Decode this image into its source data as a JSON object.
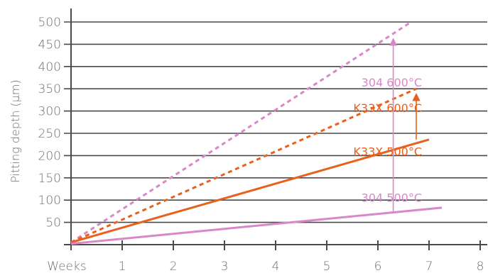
{
  "chart_data": {
    "type": "line",
    "title": "",
    "xlabel": "Weeks",
    "ylabel": "Pitting depth (µm)",
    "xlim": [
      0,
      8
    ],
    "ylim": [
      0,
      500
    ],
    "x_ticks": [
      "1",
      "2",
      "3",
      "4",
      "5",
      "6",
      "7",
      "8"
    ],
    "y_ticks": [
      "50",
      "100",
      "150",
      "200",
      "250",
      "300",
      "350",
      "400",
      "450",
      "500"
    ],
    "grid": {
      "horizontal": true,
      "vertical": false
    },
    "colors": {
      "orange": "#e8601c",
      "pink": "#d888c8",
      "grid": "#4a4a4a",
      "text": "#6e6e6e"
    },
    "series": [
      {
        "name": "304 600°C",
        "color": "#d888c8",
        "style": "dashed",
        "x": [
          0,
          6.65
        ],
        "y": [
          5,
          500
        ]
      },
      {
        "name": "K33X 600°C",
        "color": "#e8601c",
        "style": "dashed",
        "x": [
          0,
          6.75
        ],
        "y": [
          5,
          350
        ]
      },
      {
        "name": "K33X 500°C",
        "color": "#e8601c",
        "style": "solid",
        "x": [
          0,
          7.0
        ],
        "y": [
          5,
          236
        ]
      },
      {
        "name": "304 500°C",
        "color": "#d888c8",
        "style": "solid",
        "x": [
          0,
          7.25
        ],
        "y": [
          2,
          83
        ]
      }
    ],
    "annotations": [
      {
        "type": "arrow",
        "color": "#d888c8",
        "x": 6.3,
        "y_from": 75,
        "y_to": 462
      },
      {
        "type": "arrow",
        "color": "#e8601c",
        "x": 6.75,
        "y_from": 236,
        "y_to": 338
      }
    ],
    "labels": [
      {
        "text": "304 600°C",
        "color": "#d888c8",
        "x": 6.75,
        "y": 365
      },
      {
        "text": "K33X 600°C",
        "color": "#e8601c",
        "x": 6.75,
        "y": 307
      },
      {
        "text": "K33X 500°C",
        "color": "#e8601c",
        "x": 6.75,
        "y": 209
      },
      {
        "text": "304 500°C",
        "color": "#d888c8",
        "x": 6.75,
        "y": 106
      }
    ]
  }
}
